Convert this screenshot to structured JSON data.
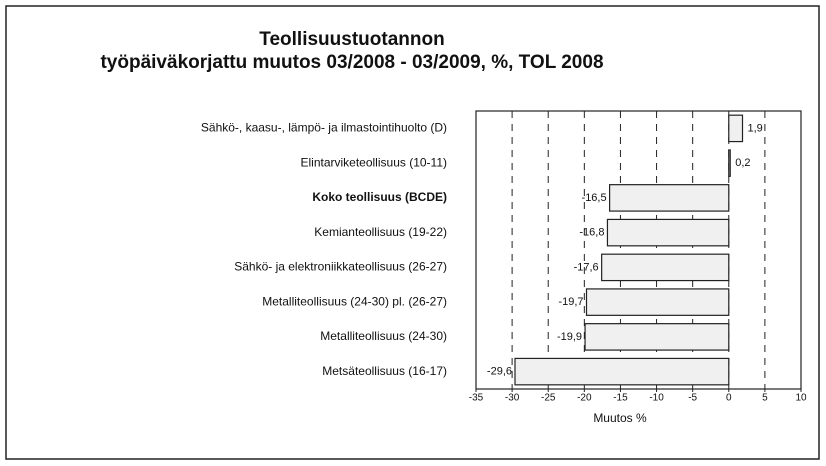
{
  "chart_data": {
    "type": "bar",
    "orientation": "horizontal",
    "title": "Teollisuustuotannon",
    "subtitle": "työpäiväkorjattu muutos 03/2008 - 03/2009,  %,  TOL 2008",
    "categories": [
      "Sähkö-, kaasu-, lämpö- ja ilmastointihuolto (D)",
      "Elintarviketeollisuus (10-11)",
      "Koko teollisuus (BCDE)",
      "Kemianteollisuus (19-22)",
      "Sähkö- ja elektroniikkateollisuus (26-27)",
      "Metalliteollisuus (24-30) pl. (26-27)",
      "Metalliteollisuus (24-30)",
      "Metsäteollisuus (16-17)"
    ],
    "values": [
      1.9,
      0.2,
      -16.5,
      -16.8,
      -17.6,
      -19.7,
      -19.9,
      -29.6
    ],
    "value_labels": [
      "1,9",
      "0,2",
      "-16,5",
      "-16,8",
      "-17,6",
      "-19,7",
      "-19,9",
      "-29,6"
    ],
    "color": "#f0f0f0",
    "xlim": [
      -35,
      10
    ],
    "xticks": [
      -35,
      -30,
      -25,
      -20,
      -15,
      -10,
      -5,
      0,
      5,
      10
    ],
    "x_label": "Muutos %",
    "grid": true
  }
}
